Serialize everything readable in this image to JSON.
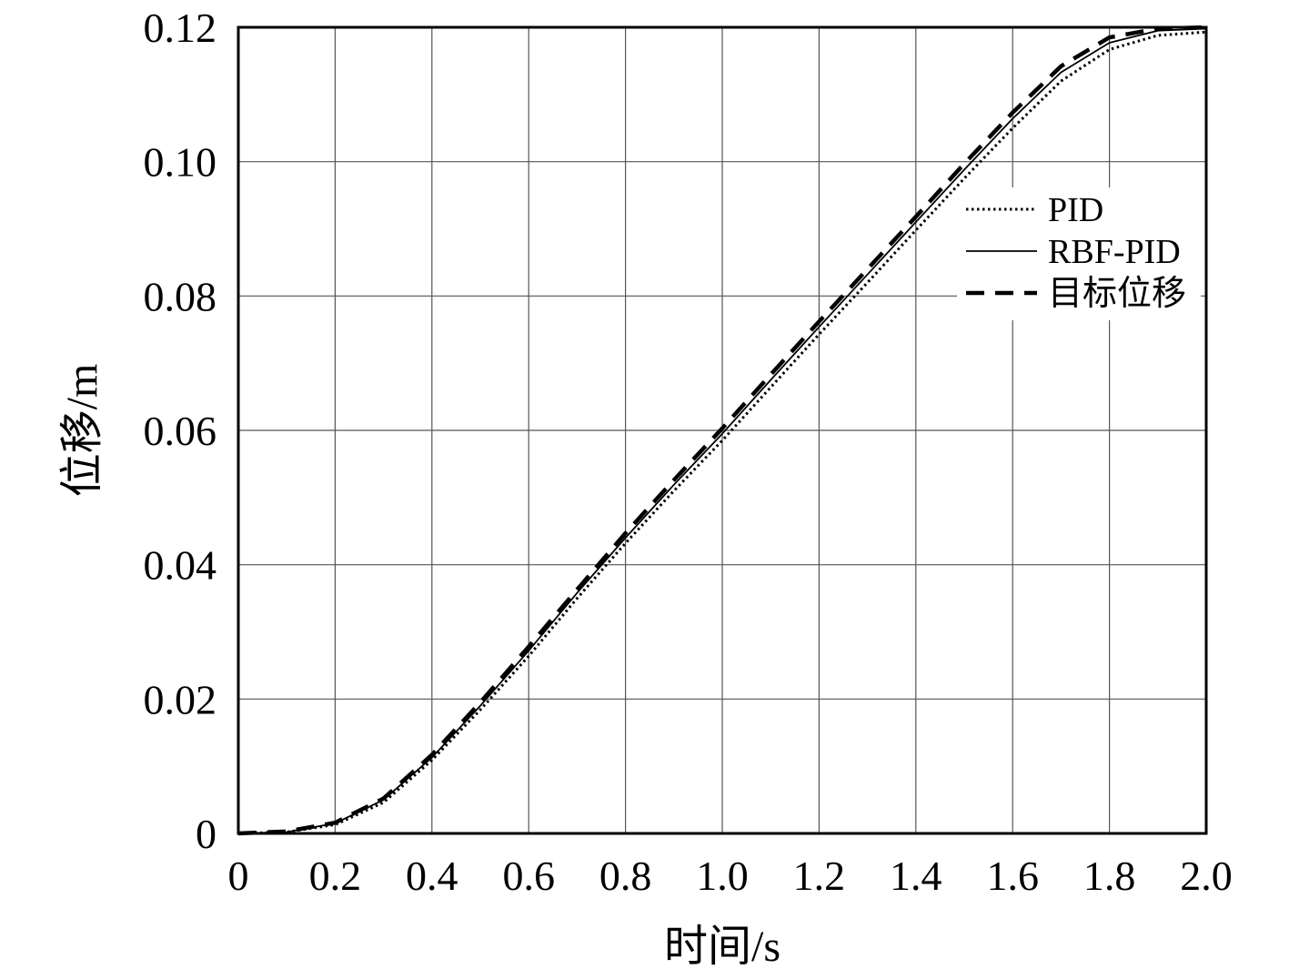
{
  "chart_data": {
    "type": "line",
    "title": "",
    "xlabel": "时间/s",
    "ylabel": "位移/m",
    "xlim": [
      0,
      2.0
    ],
    "ylim": [
      0,
      0.12
    ],
    "grid": true,
    "legend_position": "right",
    "x_ticks": [
      "0",
      "0.2",
      "0.4",
      "0.6",
      "0.8",
      "1.0",
      "1.2",
      "1.4",
      "1.6",
      "1.8",
      "2.0"
    ],
    "y_ticks": [
      "0",
      "0.02",
      "0.04",
      "0.06",
      "0.08",
      "0.10",
      "0.12"
    ],
    "x": [
      0,
      0.1,
      0.2,
      0.3,
      0.4,
      0.5,
      0.6,
      0.7,
      0.8,
      0.9,
      1.0,
      1.1,
      1.2,
      1.3,
      1.4,
      1.5,
      1.6,
      1.7,
      1.8,
      1.9,
      2.0
    ],
    "series": [
      {
        "name": "PID",
        "style": "dotted",
        "values": [
          0,
          0.0002,
          0.0013,
          0.0046,
          0.0109,
          0.0184,
          0.0264,
          0.035,
          0.0432,
          0.051,
          0.0585,
          0.0664,
          0.0743,
          0.082,
          0.0898,
          0.0975,
          0.105,
          0.112,
          0.1167,
          0.1188,
          0.1193
        ]
      },
      {
        "name": "RBF-PID",
        "style": "solid",
        "values": [
          0,
          0.0002,
          0.0015,
          0.005,
          0.0113,
          0.019,
          0.0272,
          0.0358,
          0.044,
          0.0519,
          0.0595,
          0.0675,
          0.0754,
          0.0832,
          0.091,
          0.0988,
          0.1064,
          0.1133,
          0.1177,
          0.1195,
          0.1198
        ]
      },
      {
        "name": "目标位移",
        "style": "dashed",
        "values": [
          0,
          0.0003,
          0.0016,
          0.0052,
          0.0117,
          0.0195,
          0.0278,
          0.0363,
          0.0447,
          0.0526,
          0.0603,
          0.0683,
          0.0762,
          0.084,
          0.0918,
          0.0997,
          0.1073,
          0.1142,
          0.1185,
          0.1198,
          0.12
        ]
      }
    ]
  }
}
